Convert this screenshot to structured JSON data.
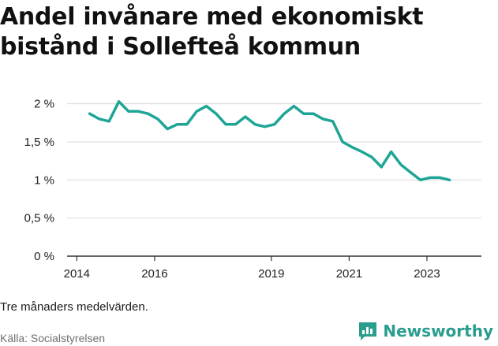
{
  "title": "Andel invånare med ekonomiskt bistånd i Sollefteå kommun",
  "note": "Tre månaders medelvärden.",
  "source": "Källa: Socialstyrelsen",
  "brand": {
    "name": "Newsworthy",
    "icon": "newsworthy-chart-icon",
    "color": "#2a9d8f"
  },
  "colors": {
    "line": "#1fa596",
    "grid": "#d9d9d9",
    "axis": "#333333"
  },
  "chart_data": {
    "type": "line",
    "title": "Andel invånare med ekonomiskt bistånd i Sollefteå kommun",
    "xlabel": "",
    "ylabel": "",
    "xlim": [
      2013.75,
      2024.4
    ],
    "ylim": [
      0,
      2.1
    ],
    "grid": "horizontal",
    "legend": "none",
    "x_ticks": [
      {
        "value": 2014,
        "label": "2014"
      },
      {
        "value": 2016,
        "label": "2016"
      },
      {
        "value": 2019,
        "label": "2019"
      },
      {
        "value": 2021,
        "label": "2021"
      },
      {
        "value": 2023,
        "label": "2023"
      }
    ],
    "y_ticks": [
      {
        "value": 0,
        "label": "0 %"
      },
      {
        "value": 0.5,
        "label": "0,5 %"
      },
      {
        "value": 1,
        "label": "1 %"
      },
      {
        "value": 1.5,
        "label": "1,5 %"
      },
      {
        "value": 2,
        "label": "2 %"
      }
    ],
    "series": [
      {
        "x": [
          2014.33,
          2014.58,
          2014.83,
          2015.08,
          2015.33,
          2015.58,
          2015.83,
          2016.08,
          2016.33,
          2016.58,
          2016.83,
          2017.08,
          2017.33,
          2017.58,
          2017.83,
          2018.08,
          2018.33,
          2018.58,
          2018.83,
          2019.08,
          2019.33,
          2019.58,
          2019.83,
          2020.08,
          2020.33,
          2020.58,
          2020.83,
          2021.08,
          2021.33,
          2021.58,
          2021.83,
          2022.08,
          2022.33,
          2022.58,
          2022.83,
          2023.08,
          2023.33,
          2023.58
        ],
        "values": [
          1.87,
          1.8,
          1.77,
          2.03,
          1.9,
          1.9,
          1.87,
          1.8,
          1.67,
          1.73,
          1.73,
          1.9,
          1.97,
          1.87,
          1.73,
          1.73,
          1.83,
          1.73,
          1.7,
          1.73,
          1.87,
          1.97,
          1.87,
          1.87,
          1.8,
          1.77,
          1.5,
          1.43,
          1.37,
          1.3,
          1.17,
          1.37,
          1.2,
          1.1,
          1.0,
          1.03,
          1.03,
          1.0
        ]
      }
    ]
  }
}
